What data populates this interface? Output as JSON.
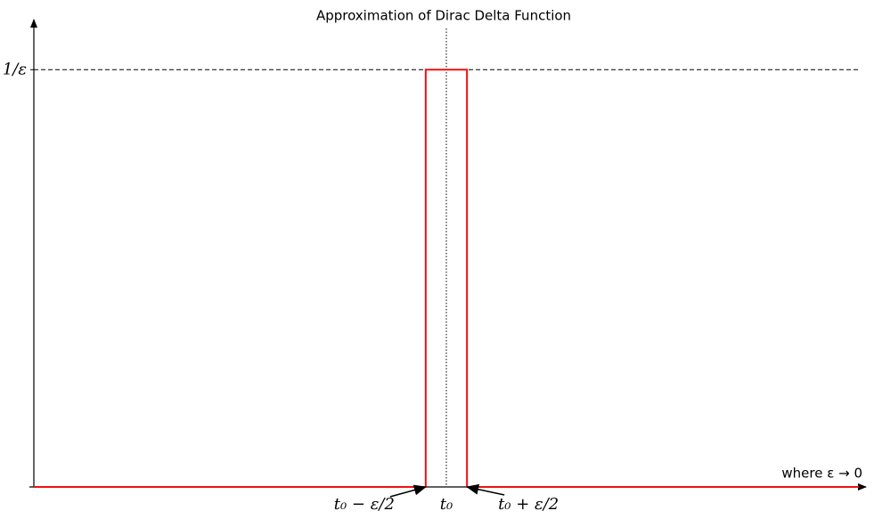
{
  "chart_data": {
    "type": "line",
    "title": "Approximation of Dirac Delta Function",
    "x": [
      -1,
      -0.05,
      -0.05,
      0.05,
      0.05,
      1
    ],
    "series": [
      {
        "color": "#ee1111",
        "values": [
          0,
          0,
          10,
          10,
          0,
          0
        ]
      }
    ],
    "xlim": [
      -1,
      1
    ],
    "ylim": [
      0,
      11.2
    ],
    "yticks": [
      {
        "value": 10,
        "label": "1/ε"
      }
    ],
    "hline": 10,
    "vline": 0,
    "annotations": [
      "t₀ − ε/2",
      "t₀",
      "t₀ + ε/2"
    ],
    "note": "where ε → 0"
  }
}
